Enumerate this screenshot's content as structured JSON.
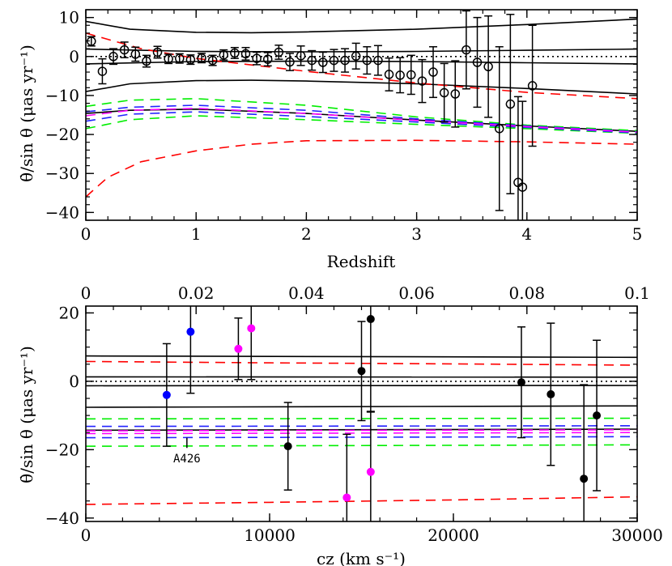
{
  "chart_data": [
    {
      "type": "scatter",
      "panel": "top",
      "xlabel": "Redshift",
      "ylabel": "θ̇/sin θ  (μas yr⁻¹)",
      "xlim": [
        0,
        5
      ],
      "ylim": [
        -42,
        12
      ],
      "xticks": [
        "0",
        "1",
        "2",
        "3",
        "4",
        "5"
      ],
      "yticks": [
        "10",
        "0",
        "−10",
        "−20",
        "−30",
        "−40"
      ],
      "xtick_values": [
        0,
        1,
        2,
        3,
        4,
        5
      ],
      "ytick_values": [
        10,
        0,
        -10,
        -20,
        -30,
        -40
      ],
      "points": [
        {
          "x": 0.05,
          "y": 3.9,
          "err": 1.2
        },
        {
          "x": 0.15,
          "y": -3.8,
          "err": 3.2
        },
        {
          "x": 0.25,
          "y": 0.0,
          "err": 2.0
        },
        {
          "x": 0.35,
          "y": 1.7,
          "err": 2.0
        },
        {
          "x": 0.45,
          "y": 0.6,
          "err": 1.8
        },
        {
          "x": 0.55,
          "y": -1.2,
          "err": 1.5
        },
        {
          "x": 0.65,
          "y": 1.1,
          "err": 1.5
        },
        {
          "x": 0.75,
          "y": -0.6,
          "err": 1.2
        },
        {
          "x": 0.85,
          "y": -0.5,
          "err": 1.2
        },
        {
          "x": 0.95,
          "y": -0.8,
          "err": 1.2
        },
        {
          "x": 1.05,
          "y": -0.4,
          "err": 1.2
        },
        {
          "x": 1.15,
          "y": -1.0,
          "err": 1.3
        },
        {
          "x": 1.25,
          "y": 0.4,
          "err": 1.3
        },
        {
          "x": 1.35,
          "y": 0.9,
          "err": 1.4
        },
        {
          "x": 1.45,
          "y": 0.7,
          "err": 1.6
        },
        {
          "x": 1.55,
          "y": -0.5,
          "err": 1.6
        },
        {
          "x": 1.65,
          "y": -0.7,
          "err": 1.7
        },
        {
          "x": 1.75,
          "y": 1.1,
          "err": 1.8
        },
        {
          "x": 1.85,
          "y": -1.4,
          "err": 2.2
        },
        {
          "x": 1.95,
          "y": 0.2,
          "err": 2.5
        },
        {
          "x": 2.05,
          "y": -1.0,
          "err": 2.5
        },
        {
          "x": 2.15,
          "y": -1.5,
          "err": 2.6
        },
        {
          "x": 2.25,
          "y": -1.0,
          "err": 2.8
        },
        {
          "x": 2.35,
          "y": -1.0,
          "err": 3.0
        },
        {
          "x": 2.45,
          "y": 0.1,
          "err": 3.3
        },
        {
          "x": 2.55,
          "y": -1.0,
          "err": 3.5
        },
        {
          "x": 2.65,
          "y": -1.0,
          "err": 3.8
        },
        {
          "x": 2.75,
          "y": -4.6,
          "err": 4.2
        },
        {
          "x": 2.85,
          "y": -4.8,
          "err": 4.5
        },
        {
          "x": 2.95,
          "y": -4.7,
          "err": 5.0
        },
        {
          "x": 3.05,
          "y": -6.3,
          "err": 5.5
        },
        {
          "x": 3.15,
          "y": -4.0,
          "err": 6.5
        },
        {
          "x": 3.25,
          "y": -9.3,
          "err": 7.5
        },
        {
          "x": 3.35,
          "y": -9.6,
          "err": 8.5
        },
        {
          "x": 3.45,
          "y": 1.7,
          "err": 10.0
        },
        {
          "x": 3.55,
          "y": -1.5,
          "err": 11.5
        },
        {
          "x": 3.65,
          "y": -2.6,
          "err": 13.0
        },
        {
          "x": 3.75,
          "y": -18.5,
          "err": 21.0
        },
        {
          "x": 3.85,
          "y": -12.2,
          "err": 23.0
        },
        {
          "x": 3.92,
          "y": -32.3,
          "err": 22.0
        },
        {
          "x": 3.96,
          "y": -33.5,
          "err": 22.0
        },
        {
          "x": 4.05,
          "y": -7.5,
          "err": 15.5
        }
      ],
      "curves": {
        "solid_black": [
          [
            [
              0,
              9.0
            ],
            [
              0.4,
              7.0
            ],
            [
              1,
              6.2
            ],
            [
              1.5,
              6.1
            ],
            [
              2,
              6.3
            ],
            [
              3,
              7.0
            ],
            [
              4,
              8.2
            ],
            [
              5,
              9.6
            ]
          ],
          [
            [
              0,
              1.9
            ],
            [
              1,
              1.3
            ],
            [
              2,
              1.2
            ],
            [
              3,
              1.3
            ],
            [
              4,
              1.6
            ],
            [
              5,
              1.9
            ]
          ],
          [
            [
              0,
              -1.9
            ],
            [
              1,
              -1.3
            ],
            [
              2,
              -1.2
            ],
            [
              3,
              -1.3
            ],
            [
              4,
              -1.6
            ],
            [
              5,
              -1.9
            ]
          ],
          [
            [
              0,
              -9.0
            ],
            [
              0.4,
              -7.0
            ],
            [
              1,
              -6.2
            ],
            [
              1.5,
              -6.1
            ],
            [
              2,
              -6.3
            ],
            [
              3,
              -7.0
            ],
            [
              4,
              -8.2
            ],
            [
              5,
              -9.6
            ]
          ],
          [
            [
              0,
              -14.6
            ],
            [
              0.4,
              -13.8
            ],
            [
              1,
              -13.5
            ],
            [
              2,
              -14.6
            ],
            [
              3,
              -16.3
            ],
            [
              4,
              -17.8
            ],
            [
              5,
              -19.2
            ]
          ]
        ],
        "dotted_black": [
          [
            [
              0,
              0
            ],
            [
              5,
              0
            ]
          ]
        ],
        "dashed_red": [
          [
            [
              0,
              6.0
            ],
            [
              0.5,
              2.0
            ],
            [
              1,
              -0.5
            ],
            [
              2,
              -3.8
            ],
            [
              3,
              -6.8
            ],
            [
              4,
              -9.2
            ],
            [
              5,
              -10.8
            ]
          ],
          [
            [
              0,
              -36.0
            ],
            [
              0.2,
              -31.0
            ],
            [
              0.5,
              -27.0
            ],
            [
              1,
              -24.2
            ],
            [
              1.5,
              -22.5
            ],
            [
              2,
              -21.6
            ],
            [
              3,
              -21.5
            ],
            [
              4,
              -21.9
            ],
            [
              5,
              -22.5
            ]
          ]
        ],
        "dashed_green": [
          [
            [
              0,
              -12.8
            ],
            [
              0.4,
              -11.2
            ],
            [
              1,
              -10.8
            ],
            [
              2,
              -12.5
            ],
            [
              3,
              -15.5
            ],
            [
              4,
              -17.6
            ],
            [
              5,
              -19.0
            ]
          ],
          [
            [
              0,
              -18.5
            ],
            [
              0.4,
              -16.2
            ],
            [
              1,
              -15.2
            ],
            [
              2,
              -16.2
            ],
            [
              3,
              -17.4
            ],
            [
              4,
              -18.5
            ],
            [
              5,
              -19.7
            ]
          ]
        ],
        "dashed_blue": [
          [
            [
              0,
              -14.2
            ],
            [
              0.4,
              -13.0
            ],
            [
              1,
              -12.5
            ],
            [
              2,
              -13.8
            ],
            [
              3,
              -16.0
            ],
            [
              4,
              -17.8
            ],
            [
              5,
              -19.3
            ]
          ],
          [
            [
              0,
              -16.6
            ],
            [
              0.4,
              -14.8
            ],
            [
              1,
              -14.2
            ],
            [
              2,
              -15.4
            ],
            [
              3,
              -16.8
            ],
            [
              4,
              -18.2
            ],
            [
              5,
              -19.6
            ]
          ]
        ],
        "dashed_magenta": [
          [
            [
              0,
              -15.2
            ],
            [
              0.4,
              -13.8
            ],
            [
              1,
              -13.3
            ],
            [
              2,
              -14.6
            ],
            [
              3,
              -16.4
            ],
            [
              4,
              -18.0
            ],
            [
              5,
              -19.4
            ]
          ]
        ]
      }
    },
    {
      "type": "scatter",
      "panel": "bottom",
      "xlabel": "cz  (km s⁻¹)",
      "ylabel": "θ̇/sin θ  (μas yr⁻¹)",
      "xlim": [
        0,
        30000
      ],
      "ylim": [
        -41,
        22
      ],
      "top_xlim": [
        0,
        0.1
      ],
      "xticks": [
        "0",
        "10000",
        "20000",
        "30000"
      ],
      "xtick_values": [
        0,
        10000,
        20000,
        30000
      ],
      "top_xticks": [
        "0",
        "0.02",
        "0.04",
        "0.06",
        "0.08",
        "0.1"
      ],
      "top_xtick_values": [
        0,
        0.02,
        0.04,
        0.06,
        0.08,
        0.1
      ],
      "yticks": [
        "20",
        "0",
        "−20",
        "−40"
      ],
      "ytick_values": [
        20,
        0,
        -20,
        -40
      ],
      "annotation": {
        "text": "A426",
        "x": 5500,
        "y": -22.5
      },
      "marker": {
        "x": 5500,
        "y1": -16.5,
        "y2": -19.5
      },
      "points": [
        {
          "x": 4400,
          "y": -4.0,
          "err": 15.0,
          "color": "#0000ff"
        },
        {
          "x": 5700,
          "y": 14.5,
          "err": 18.0,
          "color": "#0000ff"
        },
        {
          "x": 8300,
          "y": 9.5,
          "err": 9.0,
          "color": "#ff00ff"
        },
        {
          "x": 9000,
          "y": 15.5,
          "err": 15.0,
          "color": "#ff00ff"
        },
        {
          "x": 11000,
          "y": -19.0,
          "err": 12.8,
          "color": "#000000"
        },
        {
          "x": 14200,
          "y": -34.0,
          "err": 18.5,
          "color": "#ff00ff"
        },
        {
          "x": 15000,
          "y": 3.0,
          "err": 14.5,
          "color": "#000000"
        },
        {
          "x": 15500,
          "y": 18.2,
          "err": 27.0,
          "color": "#000000"
        },
        {
          "x": 15500,
          "y": -26.5,
          "err": 17.5,
          "color": "#ff00ff"
        },
        {
          "x": 23700,
          "y": -0.3,
          "err": 16.2,
          "color": "#000000"
        },
        {
          "x": 25300,
          "y": -3.8,
          "err": 20.8,
          "color": "#000000"
        },
        {
          "x": 27100,
          "y": -28.5,
          "err": 27.5,
          "color": "#000000"
        },
        {
          "x": 27800,
          "y": -10.0,
          "err": 22.0,
          "color": "#000000"
        }
      ],
      "curves": {
        "solid_black": [
          [
            [
              0,
              7.4
            ],
            [
              30000,
              7.0
            ]
          ],
          [
            [
              0,
              1.3
            ],
            [
              30000,
              1.2
            ]
          ],
          [
            [
              0,
              -1.3
            ],
            [
              30000,
              -1.2
            ]
          ],
          [
            [
              0,
              -7.6
            ],
            [
              30000,
              -7.2
            ]
          ],
          [
            [
              0,
              -14.3
            ],
            [
              30000,
              -14.0
            ]
          ]
        ],
        "dotted_black": [
          [
            [
              0,
              0
            ],
            [
              30000,
              0
            ]
          ]
        ],
        "dashed_red": [
          [
            [
              0,
              5.8
            ],
            [
              10000,
              5.4
            ],
            [
              20000,
              5.1
            ],
            [
              30000,
              4.7
            ]
          ],
          [
            [
              0,
              -36.0
            ],
            [
              10000,
              -35.4
            ],
            [
              20000,
              -34.7
            ],
            [
              30000,
              -33.8
            ]
          ]
        ],
        "dashed_green": [
          [
            [
              0,
              -11.0
            ],
            [
              30000,
              -10.8
            ]
          ],
          [
            [
              0,
              -19.0
            ],
            [
              30000,
              -18.6
            ]
          ]
        ],
        "dashed_blue": [
          [
            [
              0,
              -13.2
            ],
            [
              30000,
              -13.0
            ]
          ],
          [
            [
              0,
              -16.5
            ],
            [
              30000,
              -16.2
            ]
          ]
        ],
        "dashed_magenta": [
          [
            [
              0,
              -14.5
            ],
            [
              30000,
              -14.2
            ]
          ],
          [
            [
              0,
              -15.3
            ],
            [
              30000,
              -15.0
            ]
          ]
        ]
      }
    }
  ]
}
